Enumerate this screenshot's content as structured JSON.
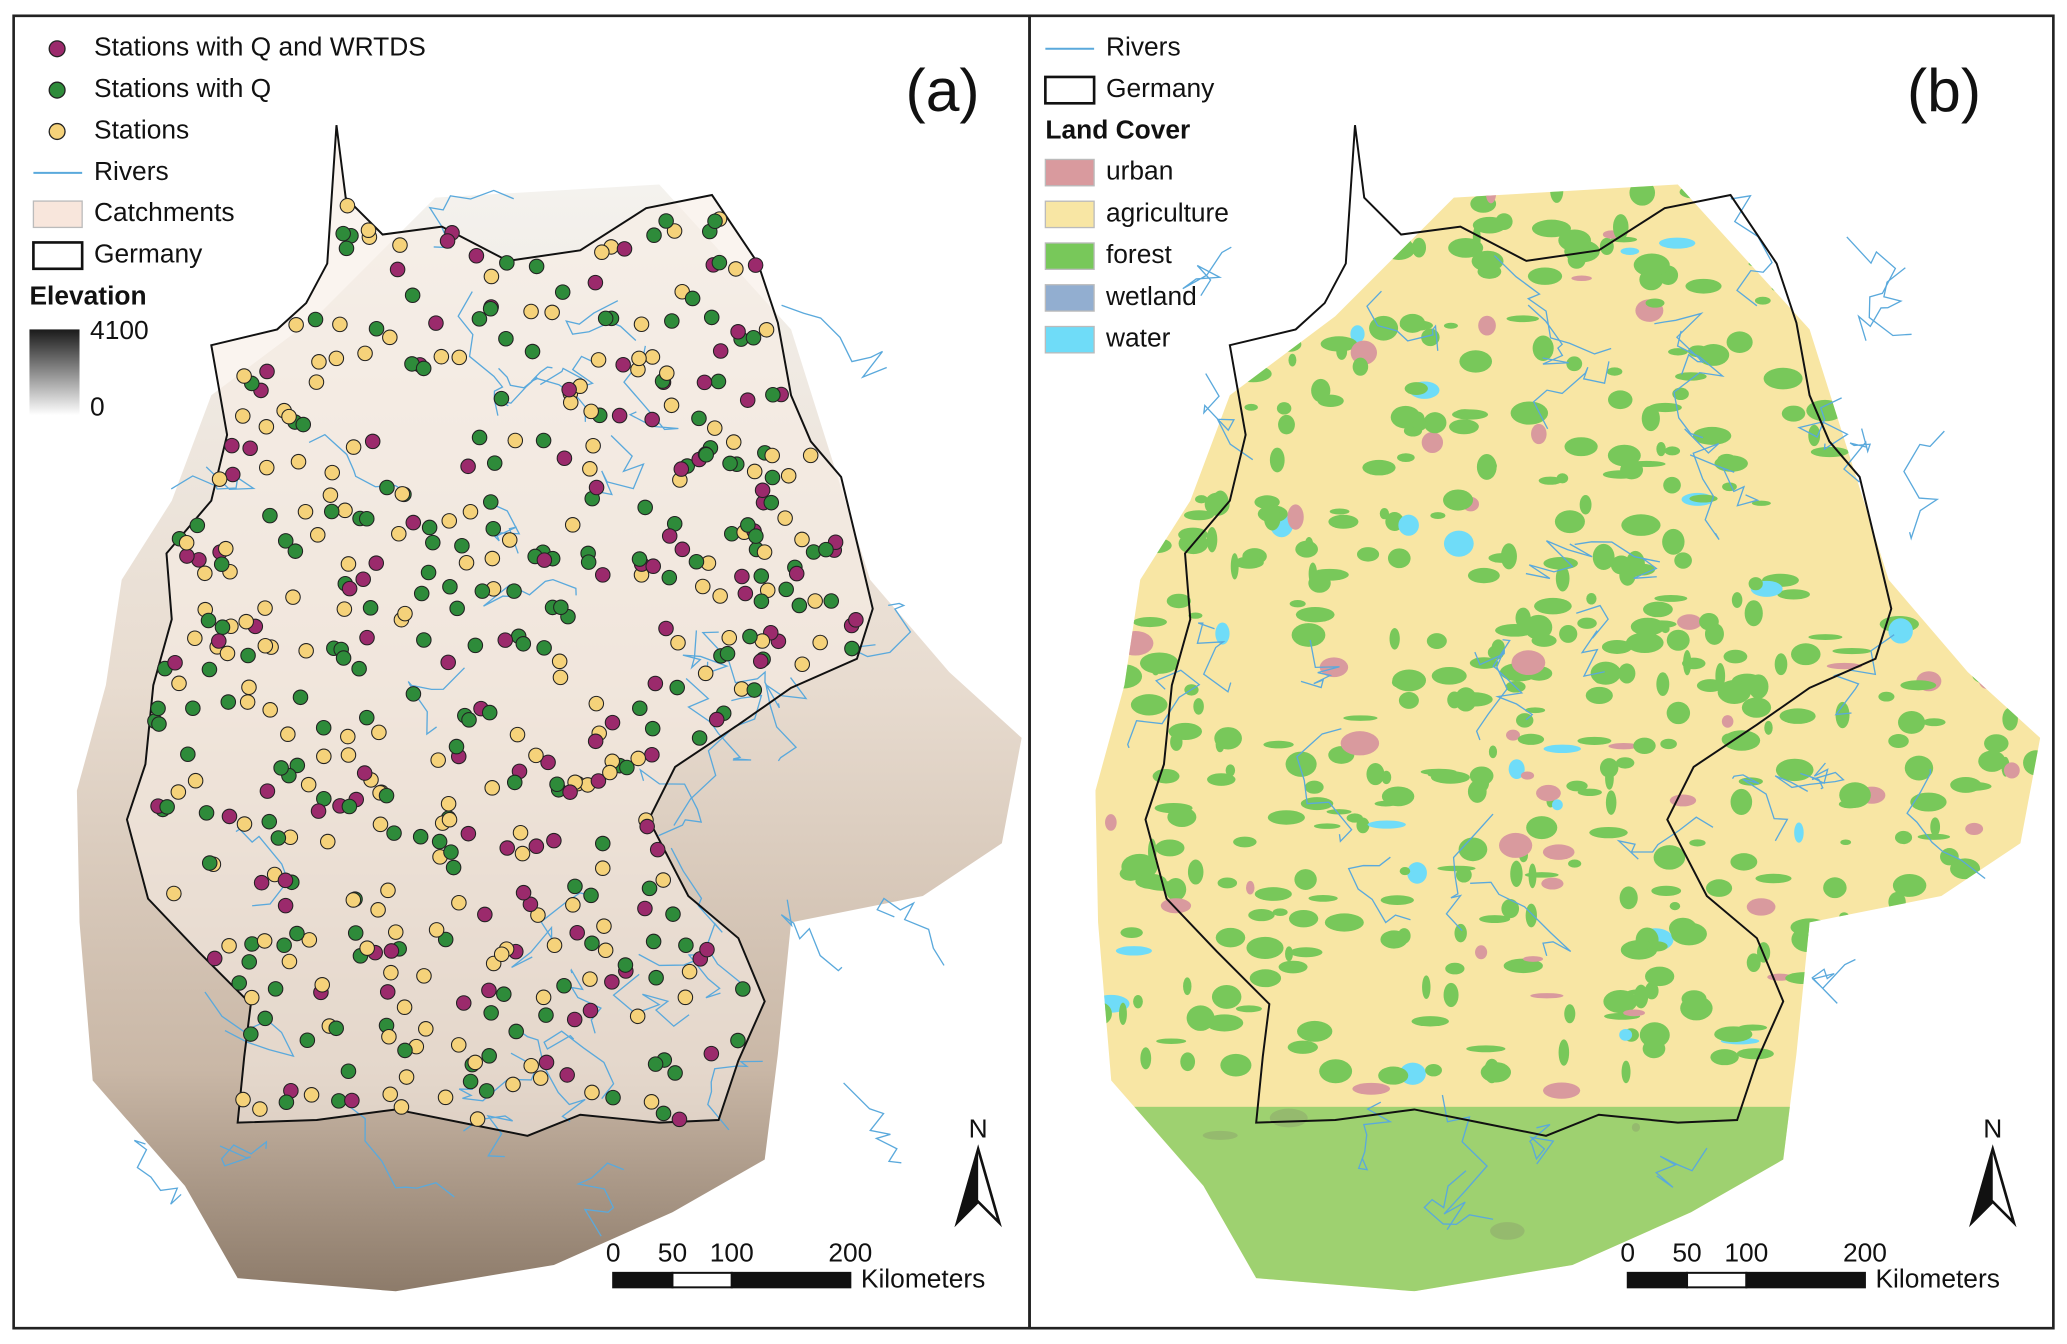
{
  "panels": [
    {
      "label": "(a)",
      "legend": [
        {
          "label": "Stations with Q and WRTDS",
          "kind": "dot",
          "color": "#9b2a6c"
        },
        {
          "label": "Stations with Q",
          "kind": "dot",
          "color": "#2e8b3a"
        },
        {
          "label": "Stations",
          "kind": "dot",
          "color": "#f5d27a"
        },
        {
          "label": "Rivers",
          "kind": "line",
          "color": "#5aa9dc"
        },
        {
          "label": "Catchments",
          "kind": "box",
          "color": "#f8e6dc"
        },
        {
          "label": "Germany",
          "kind": "box",
          "color": "#ffffff"
        }
      ],
      "elevation": {
        "title": "Elevation",
        "max": "4100",
        "min": "0"
      },
      "north": "N",
      "scale": {
        "ticks": [
          0,
          50,
          100,
          200
        ],
        "unit": "Kilometers"
      }
    },
    {
      "label": "(b)",
      "legend": [
        {
          "label": "Rivers",
          "kind": "line",
          "color": "#5aa9dc"
        },
        {
          "label": "Germany",
          "kind": "box",
          "color": "#ffffff"
        }
      ],
      "land_cover": {
        "title": "Land Cover",
        "classes": [
          {
            "label": "urban",
            "color": "#d99a9e"
          },
          {
            "label": "agriculture",
            "color": "#f8e6a4"
          },
          {
            "label": "forest",
            "color": "#78c85a"
          },
          {
            "label": "wetland",
            "color": "#92aed0"
          },
          {
            "label": "water",
            "color": "#6fdcf8"
          }
        ]
      },
      "north": "N",
      "scale": {
        "ticks": [
          0,
          50,
          100,
          200
        ],
        "unit": "Kilometers"
      }
    }
  ]
}
